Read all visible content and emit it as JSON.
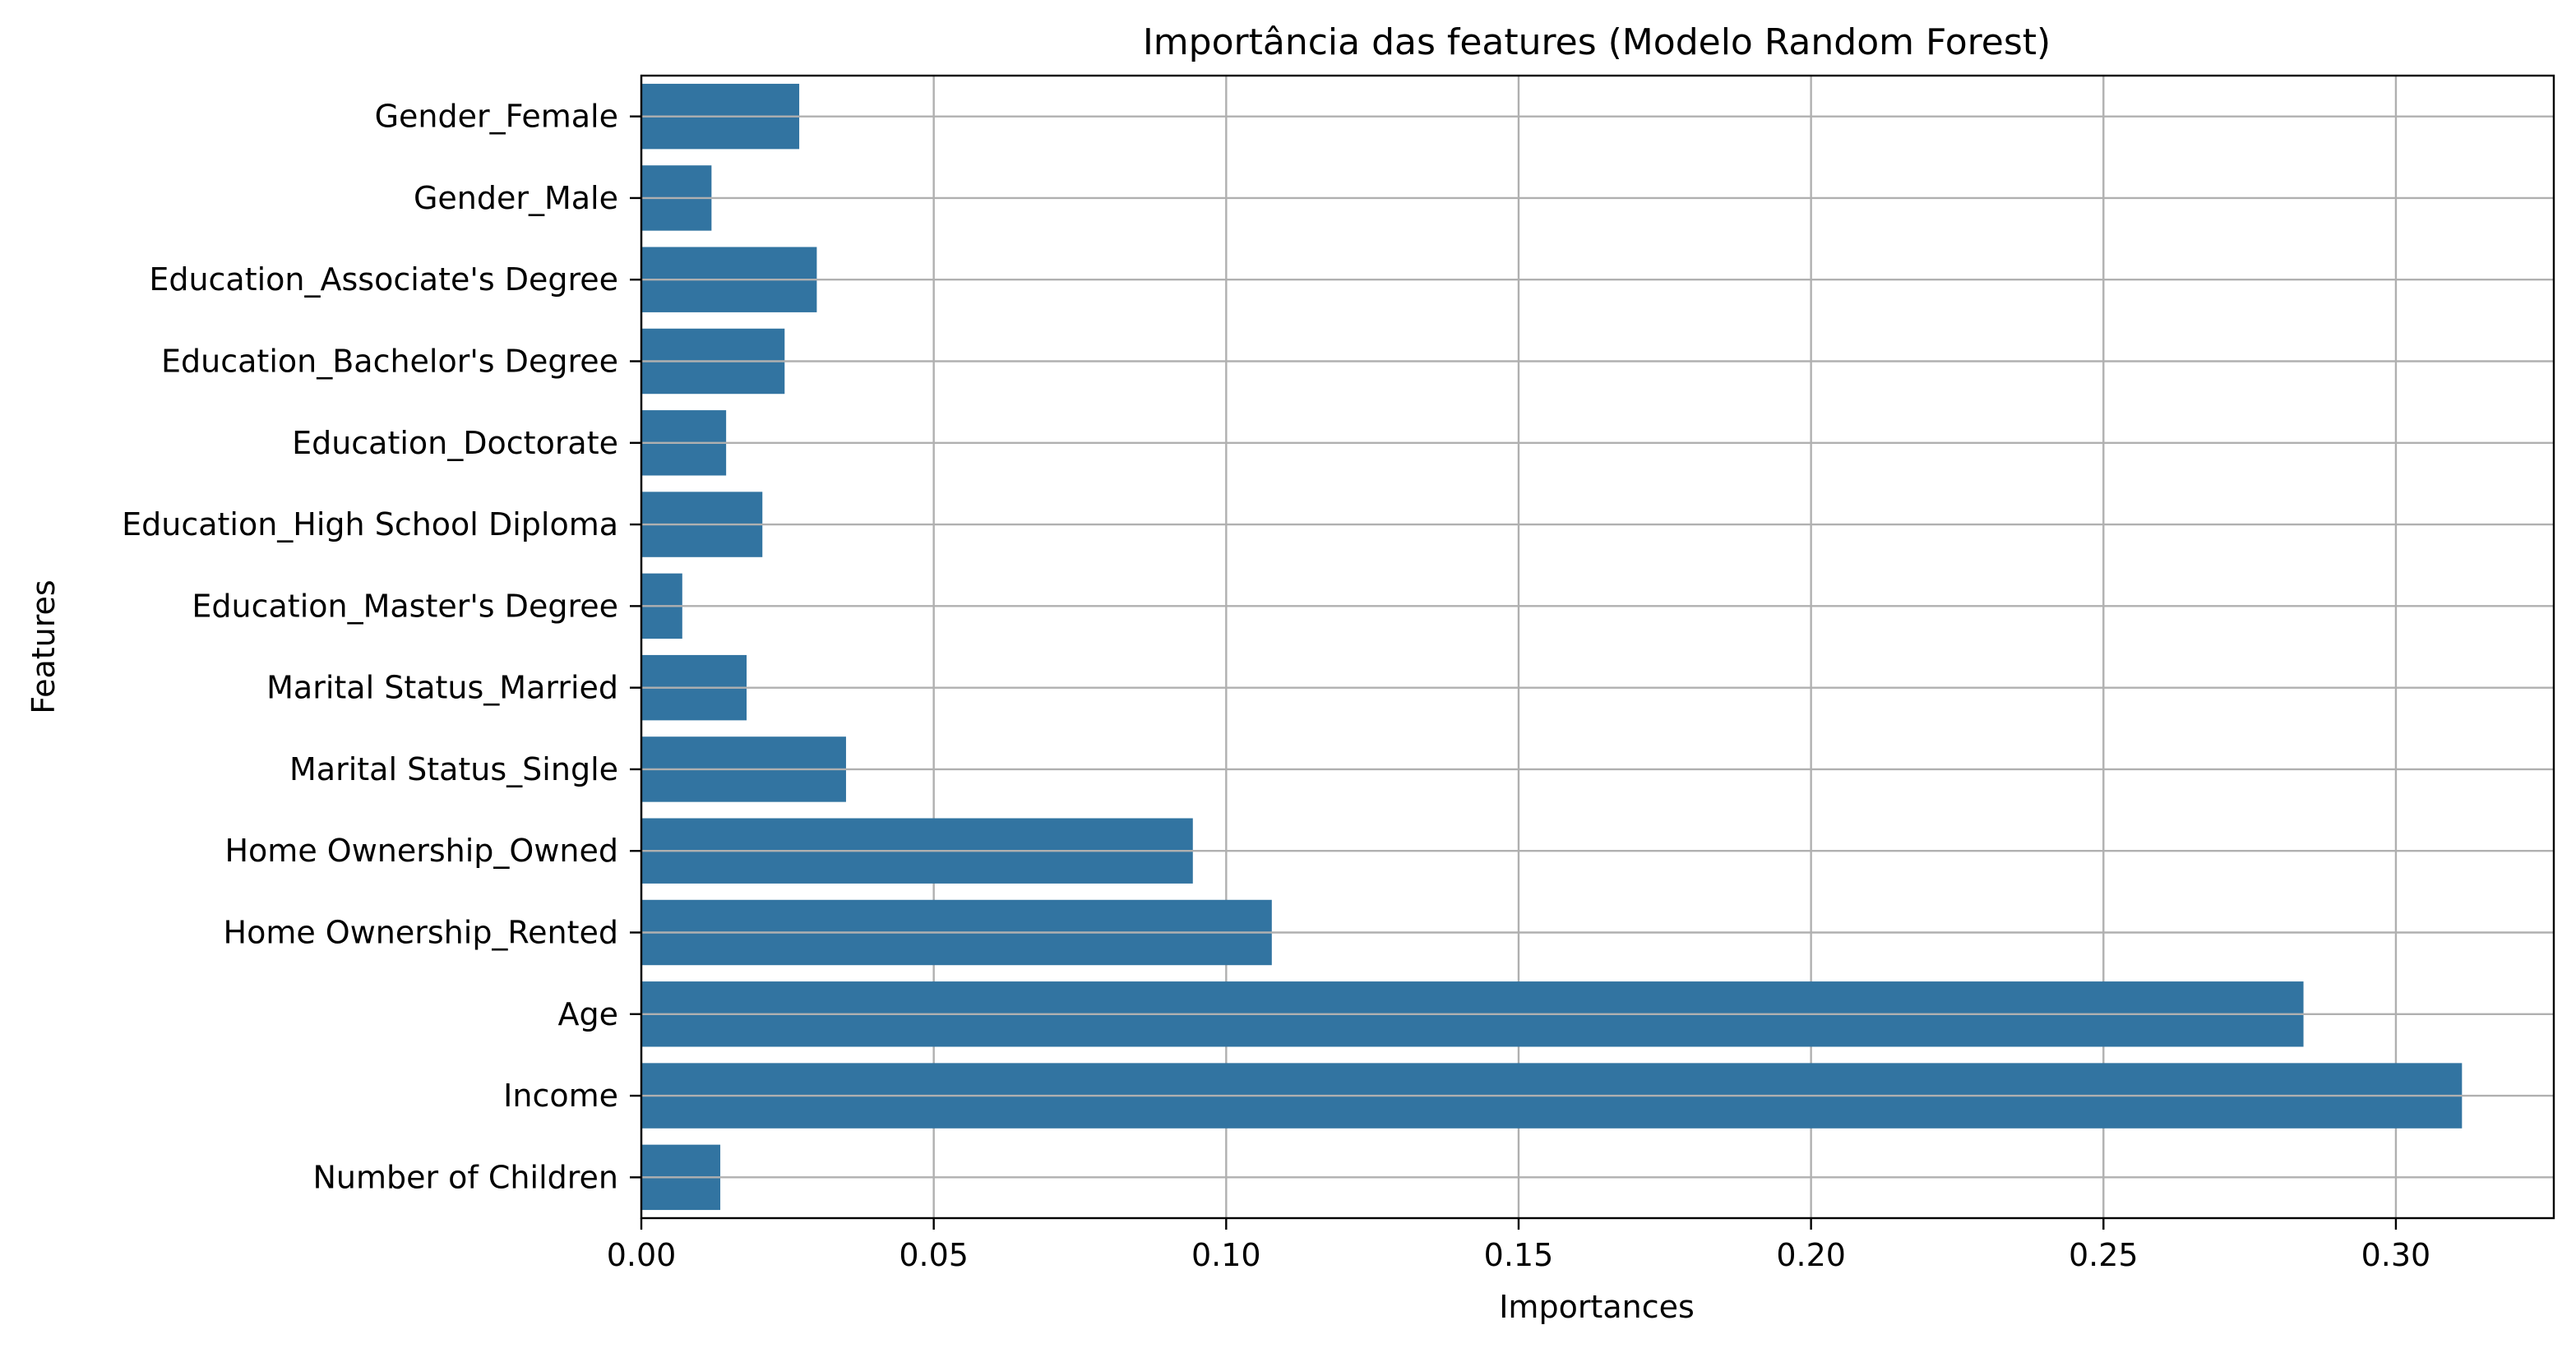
{
  "chart_data": {
    "type": "bar",
    "orientation": "horizontal",
    "title": "Importância das features (Modelo Random Forest)",
    "xlabel": "Importances",
    "ylabel": "Features",
    "xlim": [
      0,
      0.327
    ],
    "xticks": [
      0.0,
      0.05,
      0.1,
      0.15,
      0.2,
      0.25,
      0.3
    ],
    "xtick_labels": [
      "0.00",
      "0.05",
      "0.10",
      "0.15",
      "0.20",
      "0.25",
      "0.30"
    ],
    "grid": true,
    "bar_color": "#3274a1",
    "categories": [
      "Gender_Female",
      "Gender_Male",
      "Education_Associate's Degree",
      "Education_Bachelor's Degree",
      "Education_Doctorate",
      "Education_High School Diploma",
      "Education_Master's Degree",
      "Marital Status_Married",
      "Marital Status_Single",
      "Home Ownership_Owned",
      "Home Ownership_Rented",
      "Age",
      "Income",
      "Number of Children"
    ],
    "values": [
      0.027,
      0.012,
      0.03,
      0.0245,
      0.0145,
      0.0207,
      0.007,
      0.018,
      0.035,
      0.0943,
      0.1078,
      0.2842,
      0.3113,
      0.0135
    ]
  }
}
